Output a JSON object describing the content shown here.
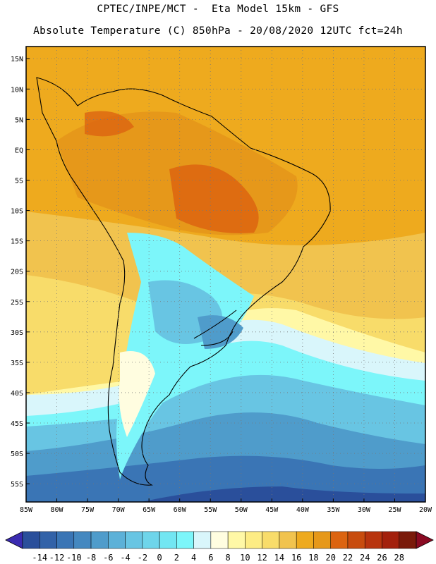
{
  "header": {
    "line1": "CPTEC/INPE/MCT -  Eta Model 15km - GFS",
    "line2": "Absolute Temperature (C) 850hPa - 20/08/2020 12UTC fct=24h"
  },
  "map": {
    "lon_range": [
      -85,
      -20
    ],
    "lat_range": [
      -58,
      17
    ],
    "lat_ticks": [
      {
        "value": 15,
        "label": "15N"
      },
      {
        "value": 10,
        "label": "10N"
      },
      {
        "value": 5,
        "label": "5N"
      },
      {
        "value": 0,
        "label": "EQ"
      },
      {
        "value": -5,
        "label": "5S"
      },
      {
        "value": -10,
        "label": "10S"
      },
      {
        "value": -15,
        "label": "15S"
      },
      {
        "value": -20,
        "label": "20S"
      },
      {
        "value": -25,
        "label": "25S"
      },
      {
        "value": -30,
        "label": "30S"
      },
      {
        "value": -35,
        "label": "35S"
      },
      {
        "value": -40,
        "label": "40S"
      },
      {
        "value": -45,
        "label": "45S"
      },
      {
        "value": -50,
        "label": "50S"
      },
      {
        "value": -55,
        "label": "55S"
      }
    ],
    "lon_ticks": [
      {
        "value": -85,
        "label": "85W"
      },
      {
        "value": -80,
        "label": "80W"
      },
      {
        "value": -75,
        "label": "75W"
      },
      {
        "value": -70,
        "label": "70W"
      },
      {
        "value": -65,
        "label": "65W"
      },
      {
        "value": -60,
        "label": "60W"
      },
      {
        "value": -55,
        "label": "55W"
      },
      {
        "value": -50,
        "label": "50W"
      },
      {
        "value": -45,
        "label": "45W"
      },
      {
        "value": -40,
        "label": "40W"
      },
      {
        "value": -35,
        "label": "35W"
      },
      {
        "value": -30,
        "label": "30W"
      },
      {
        "value": -25,
        "label": "25W"
      },
      {
        "value": -20,
        "label": "20W"
      }
    ]
  },
  "colorbar": {
    "labels": [
      "-14",
      "-12",
      "-10",
      "-8",
      "-6",
      "-4",
      "-2",
      "0",
      "2",
      "4",
      "6",
      "8",
      "10",
      "12",
      "14",
      "16",
      "18",
      "20",
      "22",
      "24",
      "26",
      "28"
    ],
    "colors": [
      "#2a4f9b",
      "#3262a8",
      "#3a75b5",
      "#4488c0",
      "#4f9ccb",
      "#5cb1d8",
      "#68c5e3",
      "#6ed5ea",
      "#72e6f2",
      "#7cf6fa",
      "#d9f6fb",
      "#fffde0",
      "#fff8a6",
      "#fdec84",
      "#f8dc6a",
      "#f1c34e",
      "#eeaa1e",
      "#e6981a",
      "#dc6410",
      "#c84c0e",
      "#b8340e",
      "#a3200c",
      "#7a1a0a"
    ],
    "low_color": "#3a2bb0",
    "high_color": "#8a0a22"
  }
}
